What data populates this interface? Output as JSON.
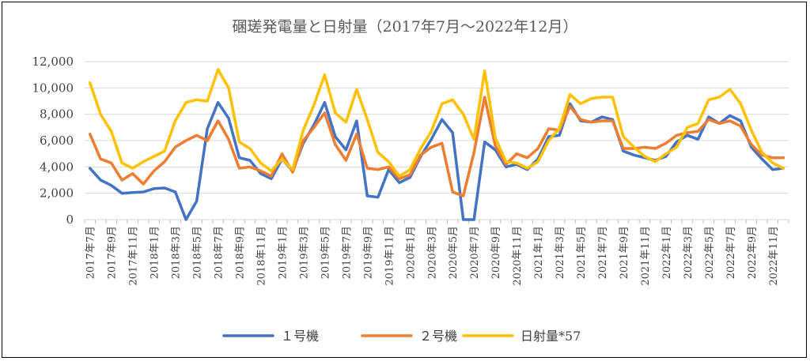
{
  "chart_data": {
    "type": "line",
    "title": "碅瑳発電量と日射量（2017年7月～2022年12月）",
    "ylim": [
      0,
      12000
    ],
    "yticks": [
      "0",
      "2,000",
      "4,000",
      "6,000",
      "8,000",
      "10,000",
      "12,000"
    ],
    "y_tick_values": [
      0,
      2000,
      4000,
      6000,
      8000,
      10000,
      12000
    ],
    "grid": "horizontal",
    "legend_position": "bottom",
    "x": [
      "2017年7月",
      "2017年8月",
      "2017年9月",
      "2017年10月",
      "2017年11月",
      "2017年12月",
      "2018年1月",
      "2018年2月",
      "2018年3月",
      "2018年4月",
      "2018年5月",
      "2018年6月",
      "2018年7月",
      "2018年8月",
      "2018年9月",
      "2018年10月",
      "2018年11月",
      "2018年12月",
      "2019年1月",
      "2019年2月",
      "2019年3月",
      "2019年4月",
      "2019年5月",
      "2019年6月",
      "2019年7月",
      "2019年8月",
      "2019年9月",
      "2019年10月",
      "2019年11月",
      "2019年12月",
      "2020年1月",
      "2020年2月",
      "2020年3月",
      "2020年4月",
      "2020年5月",
      "2020年6月",
      "2020年7月",
      "2020年8月",
      "2020年9月",
      "2020年10月",
      "2020年11月",
      "2020年12月",
      "2021年1月",
      "2021年2月",
      "2021年3月",
      "2021年4月",
      "2021年5月",
      "2021年6月",
      "2021年7月",
      "2021年8月",
      "2021年9月",
      "2021年10月",
      "2021年11月",
      "2021年12月",
      "2022年1月",
      "2022年2月",
      "2022年3月",
      "2022年4月",
      "2022年5月",
      "2022年6月",
      "2022年7月",
      "2022年8月",
      "2022年9月",
      "2022年10月",
      "2022年11月",
      "2022年12月"
    ],
    "x_tick_labels": [
      "2017年7月",
      "2017年9月",
      "2017年11月",
      "2018年1月",
      "2018年3月",
      "2018年5月",
      "2018年7月",
      "2018年9月",
      "2018年11月",
      "2019年1月",
      "2019年3月",
      "2019年5月",
      "2019年7月",
      "2019年9月",
      "2019年11月",
      "2020年1月",
      "2020年3月",
      "2020年5月",
      "2020年7月",
      "2020年9月",
      "2020年11月",
      "2021年1月",
      "2021年3月",
      "2021年5月",
      "2021年7月",
      "2021年9月",
      "2021年11月",
      "2022年1月",
      "2022年3月",
      "2022年5月",
      "2022年7月",
      "2022年9月",
      "2022年11月"
    ],
    "series": [
      {
        "name": "１号機",
        "color": "#4472c4",
        "values": [
          3900,
          3000,
          2600,
          2000,
          2050,
          2100,
          2350,
          2400,
          2100,
          0,
          1400,
          6900,
          8900,
          7700,
          4700,
          4500,
          3500,
          3100,
          4600,
          3700,
          5800,
          7200,
          8900,
          6300,
          5300,
          7500,
          1800,
          1700,
          3800,
          2800,
          3200,
          4800,
          6100,
          7600,
          6600,
          0,
          0,
          5900,
          5300,
          4000,
          4200,
          3800,
          4600,
          6300,
          6400,
          8800,
          7500,
          7400,
          7800,
          7600,
          5200,
          4900,
          4700,
          4500,
          4800,
          5900,
          6400,
          6100,
          7800,
          7300,
          7900,
          7500,
          5500,
          4600,
          3800,
          3900
        ]
      },
      {
        "name": "２号機",
        "color": "#ed7d31",
        "values": [
          6500,
          4600,
          4300,
          3000,
          3500,
          2700,
          3700,
          4400,
          5500,
          6000,
          6400,
          6000,
          7500,
          6100,
          3900,
          4000,
          3700,
          3300,
          5000,
          3600,
          6000,
          7000,
          8100,
          5700,
          4500,
          6500,
          3900,
          3800,
          4000,
          3100,
          3400,
          4900,
          5500,
          5800,
          2100,
          1800,
          5100,
          9300,
          5600,
          4200,
          5000,
          4700,
          5400,
          6900,
          6800,
          8600,
          7600,
          7400,
          7500,
          7500,
          5400,
          5400,
          5500,
          5400,
          5800,
          6400,
          6600,
          6700,
          7600,
          7300,
          7500,
          7100,
          5700,
          4900,
          4700,
          4700
        ]
      },
      {
        "name": "日射量*57",
        "color": "#ffc000",
        "values": [
          10400,
          8000,
          6700,
          4300,
          3900,
          4400,
          4800,
          5200,
          7500,
          8900,
          9100,
          9000,
          11400,
          10000,
          5900,
          5400,
          4300,
          3700,
          4600,
          3800,
          6800,
          8700,
          11000,
          8100,
          7400,
          9900,
          7600,
          5100,
          4400,
          3300,
          3800,
          5400,
          6700,
          8800,
          9100,
          8000,
          6100,
          11300,
          6200,
          4400,
          4300,
          3900,
          4400,
          6000,
          6900,
          9500,
          8800,
          9200,
          9300,
          9300,
          6300,
          5500,
          4800,
          4400,
          5000,
          5500,
          7000,
          7300,
          9100,
          9300,
          9900,
          8800,
          6800,
          5100,
          4300,
          3900
        ]
      }
    ]
  }
}
